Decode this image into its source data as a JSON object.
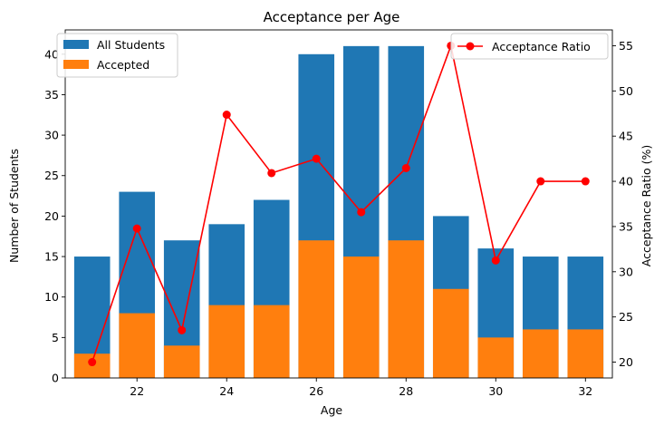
{
  "chart_data": {
    "type": "bar",
    "title": "Acceptance per Age",
    "xlabel": "Age",
    "ylabel": "Number of Students",
    "y2label": "Acceptance Ratio (%)",
    "x": [
      21,
      22,
      23,
      24,
      25,
      26,
      27,
      28,
      29,
      30,
      31,
      32
    ],
    "xticks": [
      22,
      24,
      26,
      28,
      30,
      32
    ],
    "xlim": [
      20.4,
      32.6
    ],
    "ylim": [
      0,
      43
    ],
    "yticks": [
      0,
      5,
      10,
      15,
      20,
      25,
      30,
      35,
      40
    ],
    "y2lim": [
      18.25,
      56.75
    ],
    "y2ticks": [
      20,
      25,
      30,
      35,
      40,
      45,
      50,
      55
    ],
    "series": [
      {
        "name": "All Students",
        "axis": "left",
        "kind": "bar",
        "color": "#1f77b4",
        "values": [
          15,
          23,
          17,
          19,
          22,
          40,
          41,
          41,
          20,
          16,
          15,
          15
        ]
      },
      {
        "name": "Accepted",
        "axis": "left",
        "kind": "bar",
        "color": "#ff7f0e",
        "values": [
          3,
          8,
          4,
          9,
          9,
          17,
          15,
          17,
          11,
          5,
          6,
          6
        ]
      },
      {
        "name": "Acceptance Ratio",
        "axis": "right",
        "kind": "line",
        "color": "#ff0000",
        "values": [
          20.0,
          34.78,
          23.53,
          47.37,
          40.91,
          42.5,
          36.59,
          41.46,
          55.0,
          31.25,
          40.0,
          40.0
        ]
      }
    ],
    "legends": [
      {
        "placement": "top-left",
        "entries": [
          "All Students",
          "Accepted"
        ]
      },
      {
        "placement": "top-right",
        "entries": [
          "Acceptance Ratio"
        ]
      }
    ],
    "grid": false
  }
}
